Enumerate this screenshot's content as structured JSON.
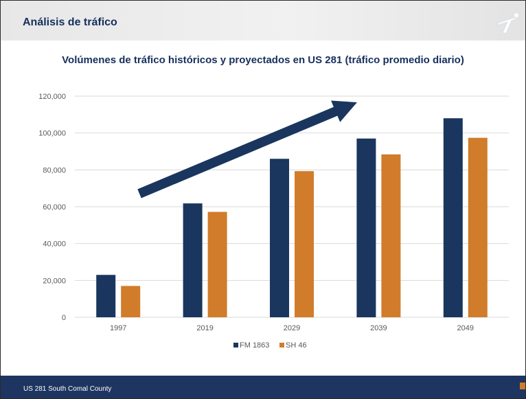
{
  "header": {
    "title": "Análisis de tráfico",
    "logo_icon": "txdot-star-logo"
  },
  "footer": {
    "text": "US 281 South Comal County"
  },
  "colors": {
    "navy": "#1a365e",
    "orange": "#d07c2b",
    "title": "#162f5c",
    "gridline": "#d9d9d9",
    "footer": "#1d3560"
  },
  "chart_data": {
    "type": "bar",
    "title": "Volúmenes de tráfico históricos y proyectados en US 281 (tráfico promedio diario)",
    "categories": [
      "1997",
      "2019",
      "2029",
      "2039",
      "2049"
    ],
    "series": [
      {
        "name": "FM 1863",
        "values": [
          23000,
          61800,
          86000,
          97000,
          108000
        ]
      },
      {
        "name": "SH 46",
        "values": [
          17000,
          57200,
          79300,
          88400,
          97400
        ]
      }
    ],
    "ylim": [
      0,
      120000
    ],
    "yticks": [
      0,
      20000,
      40000,
      60000,
      80000,
      100000,
      120000
    ],
    "ytick_labels": [
      "0",
      "20,000",
      "40,000",
      "60,000",
      "80,000",
      "100,000",
      "120,000"
    ],
    "grid": true,
    "legend": "bottom",
    "xlabel": "",
    "ylabel": "",
    "annotation": "upward-trend-arrow"
  }
}
